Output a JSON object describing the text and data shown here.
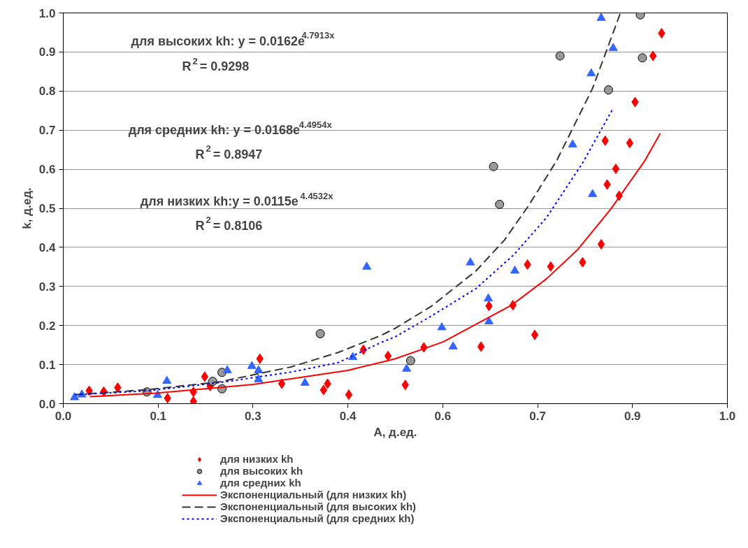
{
  "chart_data": {
    "type": "scatter",
    "xlabel": "A, д.ед.",
    "ylabel": "k, д.ед.",
    "xlim": [
      0,
      1
    ],
    "ylim": [
      0,
      1
    ],
    "xticks": [
      {
        "value": 0,
        "label": "0.0"
      },
      {
        "value": 0.1429,
        "label": "0.1"
      },
      {
        "value": 0.2857,
        "label": "0.3"
      },
      {
        "value": 0.4286,
        "label": "0.4"
      },
      {
        "value": 0.5714,
        "label": "0.6"
      },
      {
        "value": 0.7143,
        "label": "0.7"
      },
      {
        "value": 0.8571,
        "label": "0.9"
      },
      {
        "value": 1,
        "label": "1.0"
      }
    ],
    "yticks": [
      {
        "value": 0,
        "label": "0.0"
      },
      0.1,
      0.2,
      0.3,
      0.4,
      0.5,
      0.6,
      0.7,
      0.8,
      0.9,
      {
        "value": 1,
        "label": "1.0"
      }
    ],
    "grid": "y",
    "legend": "bottom",
    "annotations": [
      "для высоких kh: y = 0.0162e$^{4.7913x}$",
      "R$^{2}$ = 0.9298",
      "для средних kh: y = 0.0168e$^{4.4954x}$",
      "R$^{2}$ = 0.8947",
      "для низких kh:y = 0.0115e$^{4.4532x}$",
      "R$^{2}$ = 0.8106"
    ],
    "series": [
      {
        "name": "для низких kh",
        "marker": "diamond",
        "color": "#ff0000",
        "x": [
          0.039,
          0.061,
          0.082,
          0.157,
          0.196,
          0.196,
          0.213,
          0.221,
          0.296,
          0.329,
          0.392,
          0.398,
          0.43,
          0.452,
          0.489,
          0.515,
          0.543,
          0.629,
          0.641,
          0.677,
          0.699,
          0.71,
          0.734,
          0.782,
          0.81,
          0.819,
          0.832,
          0.837,
          0.816,
          0.853,
          0.861,
          0.888,
          0.901
        ],
        "values": [
          0.033,
          0.031,
          0.041,
          0.014,
          0.03,
          0.006,
          0.069,
          0.045,
          0.115,
          0.051,
          0.035,
          0.051,
          0.023,
          0.138,
          0.122,
          0.048,
          0.144,
          0.146,
          0.25,
          0.252,
          0.356,
          0.176,
          0.351,
          0.362,
          0.408,
          0.561,
          0.601,
          0.532,
          0.673,
          0.667,
          0.772,
          0.89,
          0.948
        ]
      },
      {
        "name": "для высоких kh",
        "marker": "circle",
        "color": "#999999",
        "x": [
          0.126,
          0.225,
          0.239,
          0.239,
          0.387,
          0.523,
          0.648,
          0.657,
          0.748,
          0.821,
          0.869,
          0.872
        ],
        "values": [
          0.03,
          0.057,
          0.08,
          0.038,
          0.179,
          0.11,
          0.607,
          0.51,
          0.89,
          0.803,
          0.995,
          0.885
        ]
      },
      {
        "name": "для средних kh",
        "marker": "triangle",
        "color": "#3366ff",
        "x": [
          0.017,
          0.028,
          0.142,
          0.156,
          0.247,
          0.284,
          0.294,
          0.294,
          0.364,
          0.436,
          0.457,
          0.517,
          0.57,
          0.587,
          0.613,
          0.64,
          0.641,
          0.68,
          0.767,
          0.795,
          0.797,
          0.81,
          0.828
        ],
        "values": [
          0.016,
          0.023,
          0.022,
          0.058,
          0.085,
          0.096,
          0.085,
          0.062,
          0.053,
          0.119,
          0.35,
          0.089,
          0.195,
          0.146,
          0.361,
          0.269,
          0.21,
          0.34,
          0.663,
          0.845,
          0.536,
          0.987,
          0.91
        ]
      },
      {
        "name": "Экспоненциальный (для низких kh)",
        "type": "line",
        "line_style": "solid",
        "color": "#ff0000",
        "x": [
          0.04,
          0.139,
          0.286,
          0.428,
          0.479,
          0.5,
          0.572,
          0.675,
          0.728,
          0.775,
          0.824,
          0.875,
          0.899
        ],
        "values": [
          0.018,
          0.027,
          0.049,
          0.085,
          0.106,
          0.115,
          0.158,
          0.252,
          0.32,
          0.395,
          0.497,
          0.62,
          0.692
        ]
      },
      {
        "name": "Экспоненциальный (для высоких kh)",
        "type": "line",
        "line_style": "dashed",
        "color": "#333333",
        "x": [
          0.018,
          0.128,
          0.236,
          0.343,
          0.414,
          0.479,
          0.5,
          0.554,
          0.621,
          0.664,
          0.7,
          0.743,
          0.797,
          0.839
        ],
        "values": [
          0.023,
          0.036,
          0.056,
          0.094,
          0.131,
          0.175,
          0.193,
          0.249,
          0.339,
          0.418,
          0.505,
          0.622,
          0.807,
          1.0
        ]
      },
      {
        "name": "Экспоненциальный (для средних kh)",
        "type": "line",
        "line_style": "dotted",
        "color": "#0000ff",
        "x": [
          0.018,
          0.128,
          0.236,
          0.343,
          0.414,
          0.479,
          0.5,
          0.55,
          0.621,
          0.679,
          0.728,
          0.782,
          0.827
        ],
        "values": [
          0.023,
          0.033,
          0.054,
          0.081,
          0.105,
          0.157,
          0.171,
          0.22,
          0.294,
          0.382,
          0.477,
          0.616,
          0.753
        ]
      }
    ]
  }
}
